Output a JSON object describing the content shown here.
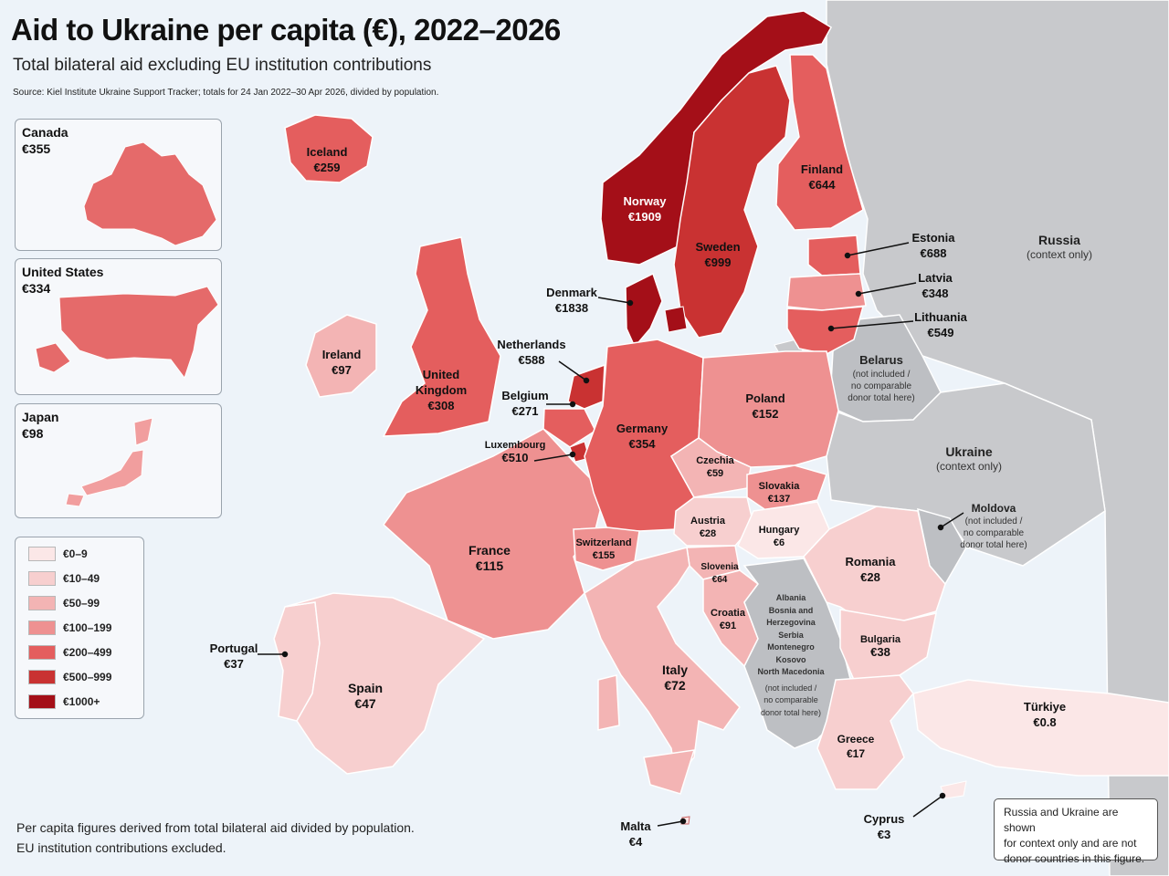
{
  "header": {
    "title": "Aid to Ukraine per capita (€), 2022–2026",
    "subtitle": "Total bilateral aid excluding EU institution contributions",
    "source": "Source: Kiel Institute Ukraine Support Tracker; totals for 24 Jan 2022–30 Apr 2026, divided by population."
  },
  "insets": [
    {
      "name": "Canada",
      "value": "€355",
      "color": "#e56a6a"
    },
    {
      "name": "United States",
      "value": "€334",
      "color": "#e56a6a"
    },
    {
      "name": "Japan",
      "value": "€98",
      "color": "#f19e9e"
    }
  ],
  "legend": [
    {
      "label": "€0–9",
      "color": "#fbe7e7"
    },
    {
      "label": "€10–49",
      "color": "#f7cfcf"
    },
    {
      "label": "€50–99",
      "color": "#f3b4b4"
    },
    {
      "label": "€100–199",
      "color": "#ee9191"
    },
    {
      "label": "€200–499",
      "color": "#e45e5e"
    },
    {
      "label": "€500–999",
      "color": "#c93232"
    },
    {
      "label": "€1000+",
      "color": "#a40f18"
    }
  ],
  "countries": {
    "iceland": {
      "name": "Iceland",
      "value": "€259"
    },
    "norway": {
      "name": "Norway",
      "value": "€1909"
    },
    "sweden": {
      "name": "Sweden",
      "value": "€999"
    },
    "finland": {
      "name": "Finland",
      "value": "€644"
    },
    "estonia": {
      "name": "Estonia",
      "value": "€688"
    },
    "latvia": {
      "name": "Latvia",
      "value": "€348"
    },
    "lithuania": {
      "name": "Lithuania",
      "value": "€549"
    },
    "denmark": {
      "name": "Denmark",
      "value": "€1838"
    },
    "ireland": {
      "name": "Ireland",
      "value": "€97"
    },
    "uk": {
      "name1": "United",
      "name2": "Kingdom",
      "value": "€308"
    },
    "netherlands": {
      "name": "Netherlands",
      "value": "€588"
    },
    "belgium": {
      "name": "Belgium",
      "value": "€271"
    },
    "luxembourg": {
      "name": "Luxembourg",
      "value": "€510"
    },
    "germany": {
      "name": "Germany",
      "value": "€354"
    },
    "poland": {
      "name": "Poland",
      "value": "€152"
    },
    "czechia": {
      "name": "Czechia",
      "value": "€59"
    },
    "slovakia": {
      "name": "Slovakia",
      "value": "€137"
    },
    "austria": {
      "name": "Austria",
      "value": "€28"
    },
    "hungary": {
      "name": "Hungary",
      "value": "€6"
    },
    "switzerland": {
      "name": "Switzerland",
      "value": "€155"
    },
    "france": {
      "name": "France",
      "value": "€115"
    },
    "slovenia": {
      "name": "Slovenia",
      "value": "€64"
    },
    "croatia": {
      "name": "Croatia",
      "value": "€91"
    },
    "romania": {
      "name": "Romania",
      "value": "€28"
    },
    "bulgaria": {
      "name": "Bulgaria",
      "value": "€38"
    },
    "portugal": {
      "name": "Portugal",
      "value": "€37"
    },
    "spain": {
      "name": "Spain",
      "value": "€47"
    },
    "italy": {
      "name": "Italy",
      "value": "€72"
    },
    "greece": {
      "name": "Greece",
      "value": "€17"
    },
    "turkiye": {
      "name": "Türkiye",
      "value": "€0.8"
    },
    "malta": {
      "name": "Malta",
      "value": "€4"
    },
    "cyprus": {
      "name": "Cyprus",
      "value": "€3"
    }
  },
  "context": {
    "russia": {
      "name": "Russia",
      "note": "(context only)"
    },
    "ukraine": {
      "name": "Ukraine",
      "note": "(context only)"
    },
    "belarus": {
      "name": "Belarus",
      "note1": "(not included /",
      "note2": "no comparable",
      "note3": "donor total here)"
    },
    "moldova": {
      "name": "Moldova",
      "note1": "(not included /",
      "note2": "no comparable",
      "note3": "donor total here)"
    },
    "balkans": {
      "names": [
        "Albania",
        "Bosnia and",
        "Herzegovina",
        "Serbia",
        "Montenegro",
        "Kosovo",
        "North Macedonia"
      ],
      "note1": "(not included /",
      "note2": "no comparable",
      "note3": "donor total here)"
    }
  },
  "footnote": {
    "line1": "Per capita figures derived from total bilateral aid divided by population.",
    "line2": "EU institution contributions excluded."
  },
  "context_box": {
    "line1": "Russia and Ukraine are shown",
    "line2": "for context only and are not",
    "line3": "donor countries in this figure."
  },
  "colors": {
    "sea": "#edf3f9",
    "context_gray": "#c8c9cc",
    "not_included_gray": "#bdbfc3",
    "border": "#ffffff"
  }
}
